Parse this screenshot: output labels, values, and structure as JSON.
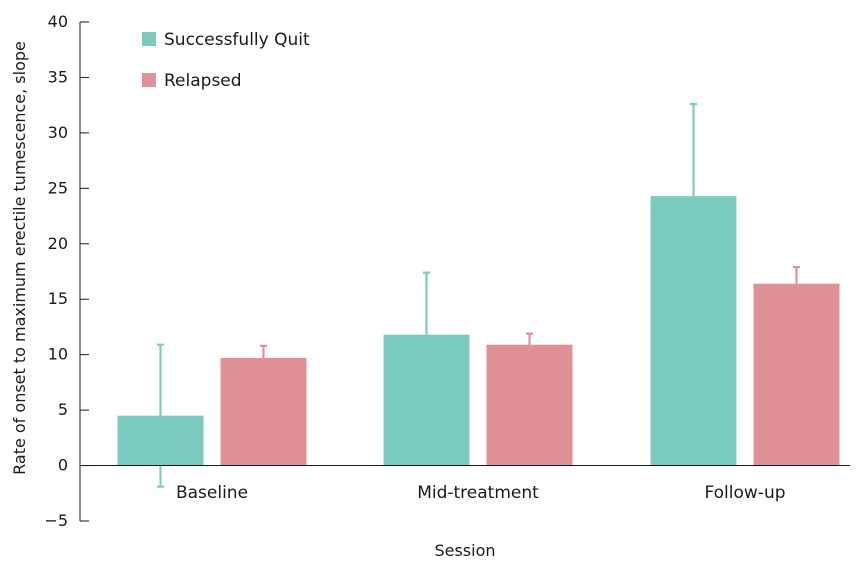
{
  "chart_data": {
    "type": "bar",
    "title": "",
    "xlabel": "Session",
    "ylabel": "Rate of onset to maximum erectile tumescence, slope",
    "categories": [
      "Baseline",
      "Mid-treatment",
      "Follow-up"
    ],
    "series": [
      {
        "name": "Successfully Quit",
        "color": "#7ccbbf",
        "values": [
          4.5,
          11.8,
          24.3
        ],
        "error_upper": [
          10.9,
          17.4,
          32.6
        ],
        "error_lower": [
          -1.9,
          null,
          null
        ]
      },
      {
        "name": "Relapsed",
        "color": "#df9195",
        "values": [
          9.7,
          10.9,
          16.4
        ],
        "error_upper": [
          10.8,
          11.9,
          17.9
        ],
        "error_lower": [
          null,
          null,
          null
        ]
      }
    ],
    "yticks": [
      {
        "value": -5,
        "label": "−5"
      },
      {
        "value": 0,
        "label": "0"
      },
      {
        "value": 5,
        "label": "5"
      },
      {
        "value": 10,
        "label": "10"
      },
      {
        "value": 15,
        "label": "15"
      },
      {
        "value": 20,
        "label": "20"
      },
      {
        "value": 25,
        "label": "25"
      },
      {
        "value": 30,
        "label": "30"
      },
      {
        "value": 35,
        "label": "35"
      },
      {
        "value": 40,
        "label": "40"
      }
    ],
    "ylim": [
      -5,
      40
    ],
    "grid": false,
    "legend_position": "top-left"
  }
}
